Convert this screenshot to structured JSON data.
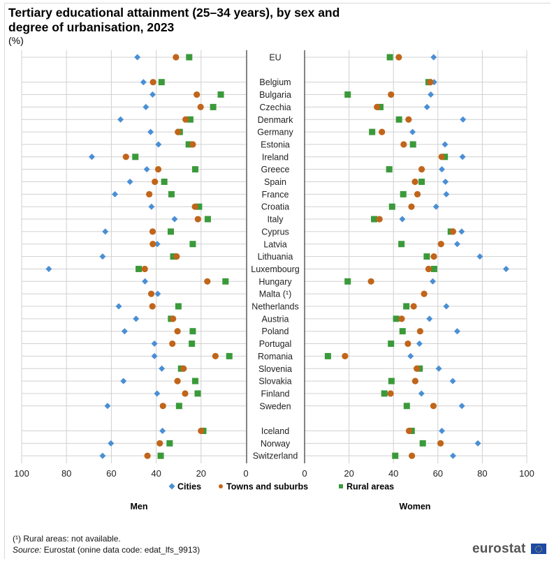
{
  "header": {
    "title": "Tertiary educational attainment (25–34 years), by sex and degree of urbanisation, 2023",
    "unit": "(%)"
  },
  "footer": {
    "footnote": "(¹) Rural areas: not available.",
    "source_label": "Source:",
    "source_text": " Eurostat (onine data code: edat_lfs_9913)",
    "logo": "eurostat"
  },
  "colors": {
    "cities": "#4a8fd4",
    "towns": "#c0651a",
    "rural": "#3a9a3a",
    "grid": "#d0d0d0",
    "axis": "#333333"
  },
  "chart_data": {
    "type": "scatter",
    "title": "Tertiary educational attainment (25–34 years), by sex and degree of urbanisation, 2023",
    "ylabel": "(%)",
    "panels": [
      {
        "name": "Men",
        "xlim": [
          0,
          100
        ],
        "direction": "reversed",
        "ticks": [
          100,
          80,
          60,
          40,
          20,
          0
        ]
      },
      {
        "name": "Women",
        "xlim": [
          0,
          100
        ],
        "direction": "normal",
        "ticks": [
          0,
          20,
          40,
          60,
          80,
          100
        ]
      }
    ],
    "legend": [
      "Cities",
      "Towns and suburbs",
      "Rural areas"
    ],
    "legend_position": "bottom",
    "grid": true,
    "categories": [
      "EU",
      "Belgium",
      "Bulgaria",
      "Czechia",
      "Denmark",
      "Germany",
      "Estonia",
      "Ireland",
      "Greece",
      "Spain",
      "France",
      "Croatia",
      "Italy",
      "Cyprus",
      "Latvia",
      "Lithuania",
      "Luxembourg",
      "Hungary",
      "Malta (¹)",
      "Netherlands",
      "Austria",
      "Poland",
      "Portugal",
      "Romania",
      "Slovenia",
      "Slovakia",
      "Finland",
      "Sweden",
      "Iceland",
      "Norway",
      "Switzerland"
    ],
    "row_groups": [
      [
        0
      ],
      [
        1,
        2,
        3,
        4,
        5,
        6,
        7,
        8,
        9,
        10,
        11,
        12,
        13,
        14,
        15,
        16,
        17,
        18,
        19,
        20,
        21,
        22,
        23,
        24,
        25,
        26,
        27
      ],
      [
        28,
        29,
        30
      ]
    ],
    "men": {
      "cities": [
        48.4,
        45.7,
        41.6,
        44.6,
        55.9,
        42.5,
        39.0,
        68.7,
        44.2,
        51.7,
        58.4,
        42.1,
        31.8,
        62.7,
        39.5,
        63.9,
        87.9,
        45.0,
        39.3,
        56.7,
        49.0,
        54.1,
        40.8,
        40.8,
        37.5,
        54.6,
        39.6,
        61.7,
        37.2,
        60.2,
        63.9
      ],
      "towns": [
        31.2,
        41.4,
        21.9,
        20.2,
        26.9,
        30.3,
        23.7,
        53.5,
        39.1,
        40.6,
        43.1,
        22.7,
        21.4,
        41.6,
        41.5,
        30.9,
        45.1,
        17.2,
        42.2,
        41.7,
        32.5,
        30.5,
        32.8,
        13.6,
        27.8,
        30.5,
        27.1,
        37.0,
        20.0,
        38.4,
        43.9
      ],
      "rural": [
        25.3,
        37.6,
        11.2,
        14.6,
        24.8,
        29.5,
        25.5,
        49.3,
        22.6,
        36.4,
        33.2,
        20.9,
        17.0,
        33.5,
        23.7,
        32.4,
        47.8,
        9.1,
        null,
        30.1,
        33.4,
        23.7,
        24.1,
        7.4,
        28.9,
        22.6,
        21.5,
        29.8,
        19.0,
        34.0,
        38.0
      ]
    },
    "women": {
      "cities": [
        58.1,
        58.3,
        56.8,
        55.1,
        71.3,
        48.6,
        63.2,
        71.1,
        61.8,
        63.4,
        63.8,
        59.2,
        44.0,
        70.7,
        68.7,
        78.9,
        90.7,
        57.7,
        53.7,
        63.8,
        56.2,
        68.7,
        51.7,
        47.7,
        60.4,
        66.7,
        52.6,
        70.8,
        61.8,
        78.0,
        66.8
      ],
      "towns": [
        42.4,
        56.6,
        38.9,
        32.6,
        46.8,
        34.8,
        44.6,
        61.7,
        52.7,
        49.7,
        50.8,
        48.1,
        33.7,
        66.8,
        61.4,
        58.2,
        55.8,
        29.9,
        53.8,
        49.1,
        43.7,
        52.0,
        46.5,
        18.2,
        50.5,
        49.8,
        38.7,
        58.0,
        47.0,
        61.2,
        48.3
      ],
      "rural": [
        38.4,
        55.8,
        19.4,
        34.1,
        42.5,
        30.4,
        48.8,
        63.1,
        38.1,
        52.7,
        44.4,
        39.4,
        31.3,
        65.8,
        43.6,
        55.0,
        58.3,
        19.4,
        null,
        45.8,
        41.2,
        44.1,
        38.9,
        10.5,
        51.8,
        39.1,
        35.9,
        46.0,
        48.2,
        53.2,
        40.8
      ]
    }
  }
}
